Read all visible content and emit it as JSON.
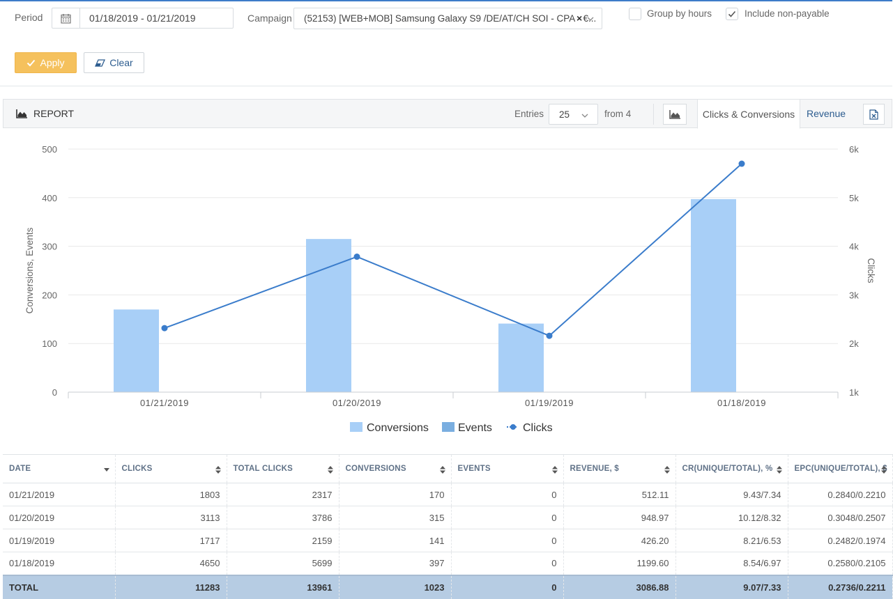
{
  "filters": {
    "period_label": "Period",
    "period_value": "01/18/2019 - 01/21/2019",
    "campaign_label": "Campaign",
    "campaign_value": "(52153) [WEB+MOB] Samsung Galaxy S9 /DE/AT/CH SOI - CPA - €...",
    "clear_x": "×",
    "group_by_hours_label": "Group by hours",
    "group_by_hours_checked": false,
    "include_nonpayable_label": "Include non-payable",
    "include_nonpayable_checked": true,
    "apply_label": "Apply",
    "clear_label": "Clear",
    "apply_color": "#f5c15d"
  },
  "report": {
    "title": "REPORT",
    "entries_label": "Entries",
    "entries_value": "25",
    "from_label": "from 4",
    "tab_active": "Clicks & Conversions",
    "tab_revenue": "Revenue"
  },
  "chart_data": {
    "type": "bar",
    "categories": [
      "01/21/2019",
      "01/20/2019",
      "01/19/2019",
      "01/18/2019"
    ],
    "series": [
      {
        "name": "Conversions",
        "kind": "bar",
        "axis": "left",
        "color": "#a8cff7",
        "values": [
          170,
          315,
          141,
          397
        ]
      },
      {
        "name": "Events",
        "kind": "bar",
        "axis": "left",
        "color": "#7aaee0",
        "values": [
          0,
          0,
          0,
          0
        ]
      },
      {
        "name": "Clicks",
        "kind": "line",
        "axis": "right",
        "color": "#3a7ccb",
        "values": [
          2317,
          3786,
          2159,
          5699
        ]
      }
    ],
    "ylabel": "Conversions, Events",
    "y2label": "Clicks",
    "ylim": [
      0,
      500
    ],
    "yticks": [
      "500",
      "400",
      "300",
      "200",
      "100",
      "0"
    ],
    "y2lim": [
      1000,
      6000
    ],
    "y2ticks": [
      "6k",
      "5k",
      "4k",
      "3k",
      "2k",
      "1k"
    ],
    "legend_position": "bottom",
    "grid": true
  },
  "table": {
    "columns": [
      "DATE",
      "CLICKS",
      "TOTAL CLICKS",
      "CONVERSIONS",
      "EVENTS",
      "REVENUE, $",
      "CR(UNIQUE/TOTAL), %",
      "EPC(UNIQUE/TOTAL), $"
    ],
    "rows": [
      [
        "01/21/2019",
        "1803",
        "2317",
        "170",
        "0",
        "512.11",
        "9.43/7.34",
        "0.2840/0.2210"
      ],
      [
        "01/20/2019",
        "3113",
        "3786",
        "315",
        "0",
        "948.97",
        "10.12/8.32",
        "0.3048/0.2507"
      ],
      [
        "01/19/2019",
        "1717",
        "2159",
        "141",
        "0",
        "426.20",
        "8.21/6.53",
        "0.2482/0.1974"
      ],
      [
        "01/18/2019",
        "4650",
        "5699",
        "397",
        "0",
        "1199.60",
        "8.54/6.97",
        "0.2580/0.2105"
      ]
    ],
    "total": [
      "TOTAL",
      "11283",
      "13961",
      "1023",
      "0",
      "3086.88",
      "9.07/7.33",
      "0.2736/0.2211"
    ]
  }
}
